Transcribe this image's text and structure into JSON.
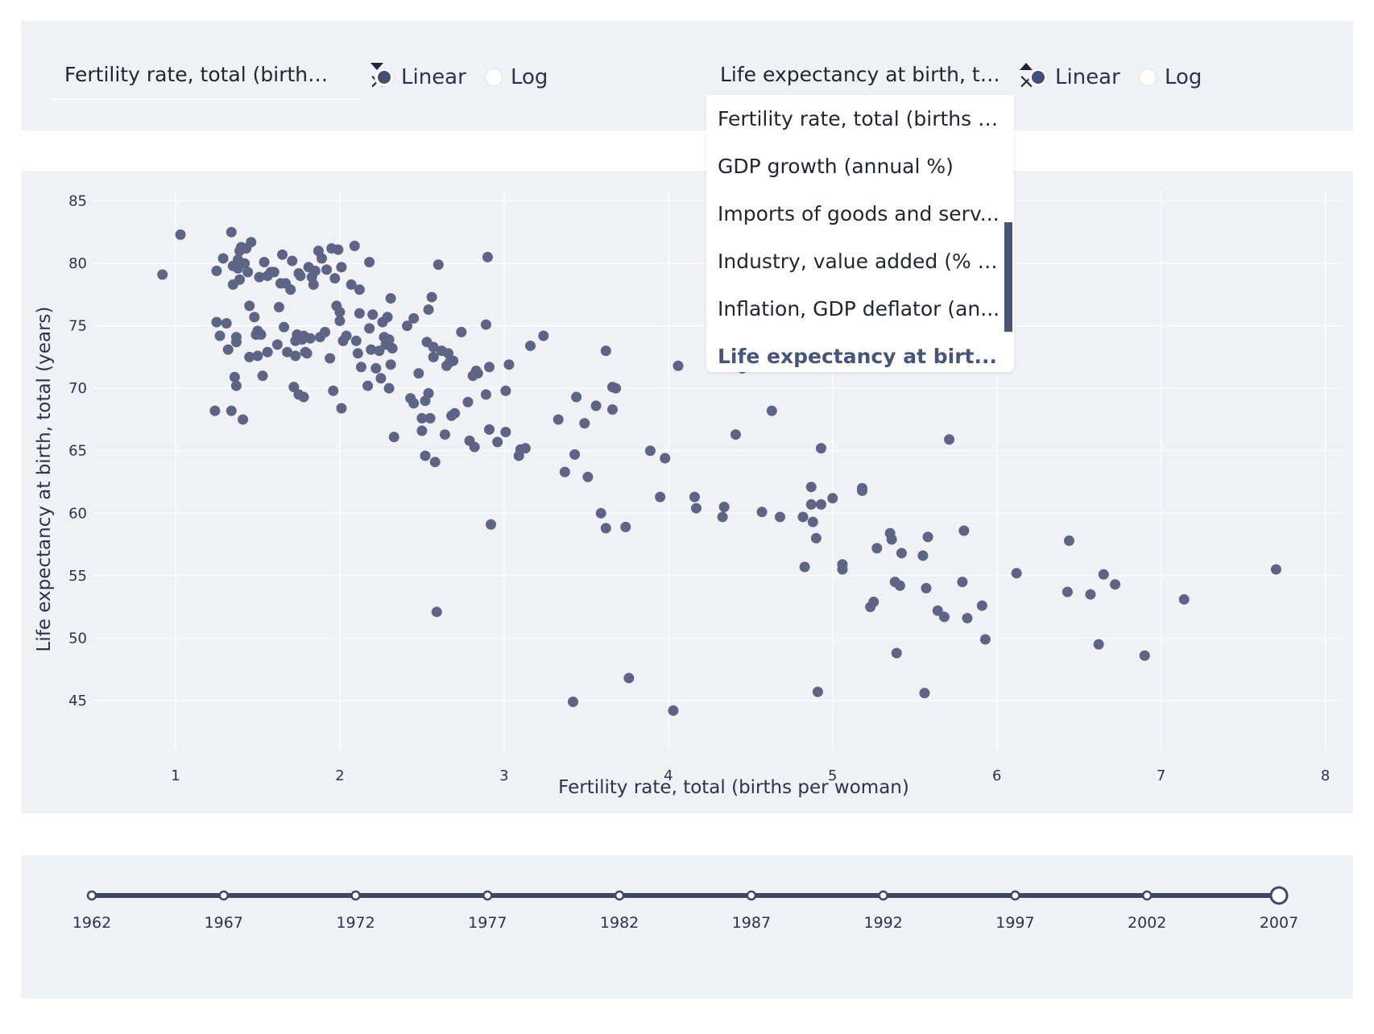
{
  "controls": {
    "x_dropdown": {
      "value": "Fertility rate, total (births p...",
      "clear": "×"
    },
    "x_scale": {
      "linear": "Linear",
      "log": "Log",
      "selected": "Linear"
    },
    "y_dropdown": {
      "value": "Life expectancy at birth, tot...",
      "clear": "×"
    },
    "y_scale": {
      "linear": "Linear",
      "log": "Log",
      "selected": "Linear"
    },
    "y_menu_options": [
      {
        "label": "Fertility rate, total (births p...",
        "selected": false
      },
      {
        "label": "GDP growth (annual %)",
        "selected": false
      },
      {
        "label": "Imports of goods and serv...",
        "selected": false
      },
      {
        "label": "Industry, value added (% o...",
        "selected": false
      },
      {
        "label": "Inflation, GDP deflator (an...",
        "selected": false
      },
      {
        "label": "Life expectancy at birt...",
        "selected": true
      }
    ]
  },
  "colors": {
    "marker": "#5d6485",
    "accent": "#48557a",
    "panel": "#f0f1f4",
    "grid": "#ffffff"
  },
  "chart_data": {
    "type": "scatter",
    "xlabel": "Fertility rate, total (births per woman)",
    "ylabel": "Life expectancy at birth, total (years)",
    "xlim": [
      0.5,
      8.1
    ],
    "ylim": [
      41,
      86
    ],
    "x_ticks": [
      1,
      2,
      3,
      4,
      5,
      6,
      7,
      8
    ],
    "y_ticks": [
      45,
      50,
      55,
      60,
      65,
      70,
      75,
      80,
      85
    ],
    "grid": true,
    "points": [
      [
        0.92,
        79.1
      ],
      [
        1.03,
        82.3
      ],
      [
        1.24,
        68.2
      ],
      [
        1.25,
        75.3
      ],
      [
        1.25,
        79.4
      ],
      [
        1.27,
        74.2
      ],
      [
        1.29,
        80.4
      ],
      [
        1.31,
        75.2
      ],
      [
        1.32,
        73.1
      ],
      [
        1.34,
        82.5
      ],
      [
        1.34,
        68.2
      ],
      [
        1.35,
        78.3
      ],
      [
        1.35,
        79.8
      ],
      [
        1.36,
        70.9
      ],
      [
        1.37,
        70.2
      ],
      [
        1.37,
        74.1
      ],
      [
        1.37,
        73.7
      ],
      [
        1.38,
        79.6
      ],
      [
        1.38,
        80.3
      ],
      [
        1.39,
        78.7
      ],
      [
        1.39,
        81.0
      ],
      [
        1.4,
        81.3
      ],
      [
        1.41,
        67.5
      ],
      [
        1.42,
        80.0
      ],
      [
        1.43,
        81.2
      ],
      [
        1.44,
        79.3
      ],
      [
        1.45,
        72.5
      ],
      [
        1.45,
        76.6
      ],
      [
        1.46,
        81.7
      ],
      [
        1.48,
        75.7
      ],
      [
        1.49,
        74.3
      ],
      [
        1.5,
        72.6
      ],
      [
        1.5,
        74.6
      ],
      [
        1.51,
        78.9
      ],
      [
        1.52,
        74.3
      ],
      [
        1.53,
        71.0
      ],
      [
        1.54,
        80.1
      ],
      [
        1.56,
        72.9
      ],
      [
        1.56,
        79.0
      ],
      [
        1.58,
        79.3
      ],
      [
        1.6,
        79.3
      ],
      [
        1.62,
        73.5
      ],
      [
        1.63,
        76.5
      ],
      [
        1.64,
        78.4
      ],
      [
        1.65,
        80.7
      ],
      [
        1.66,
        74.9
      ],
      [
        1.67,
        78.4
      ],
      [
        1.68,
        72.9
      ],
      [
        1.7,
        77.9
      ],
      [
        1.71,
        80.2
      ],
      [
        1.72,
        70.1
      ],
      [
        1.73,
        73.8
      ],
      [
        1.73,
        72.6
      ],
      [
        1.74,
        74.3
      ],
      [
        1.75,
        69.5
      ],
      [
        1.75,
        79.2
      ],
      [
        1.76,
        79.0
      ],
      [
        1.77,
        73.9
      ],
      [
        1.78,
        74.2
      ],
      [
        1.78,
        69.3
      ],
      [
        1.79,
        72.9
      ],
      [
        1.8,
        72.8
      ],
      [
        1.81,
        79.7
      ],
      [
        1.82,
        74.0
      ],
      [
        1.83,
        78.9
      ],
      [
        1.84,
        78.3
      ],
      [
        1.85,
        79.4
      ],
      [
        1.87,
        81.0
      ],
      [
        1.88,
        74.1
      ],
      [
        1.89,
        80.4
      ],
      [
        1.91,
        74.5
      ],
      [
        1.92,
        79.5
      ],
      [
        1.94,
        72.4
      ],
      [
        1.95,
        81.2
      ],
      [
        1.96,
        69.8
      ],
      [
        1.97,
        78.8
      ],
      [
        1.98,
        76.6
      ],
      [
        1.99,
        81.1
      ],
      [
        2.0,
        75.4
      ],
      [
        2.0,
        76.1
      ],
      [
        2.01,
        68.4
      ],
      [
        2.01,
        79.7
      ],
      [
        2.02,
        73.8
      ],
      [
        2.04,
        74.2
      ],
      [
        2.07,
        78.3
      ],
      [
        2.09,
        81.4
      ],
      [
        2.1,
        73.8
      ],
      [
        2.11,
        72.8
      ],
      [
        2.12,
        76.0
      ],
      [
        2.12,
        77.9
      ],
      [
        2.13,
        71.7
      ],
      [
        2.17,
        70.2
      ],
      [
        2.18,
        80.1
      ],
      [
        2.18,
        74.8
      ],
      [
        2.19,
        73.1
      ],
      [
        2.2,
        75.9
      ],
      [
        2.22,
        71.6
      ],
      [
        2.24,
        73.0
      ],
      [
        2.25,
        70.8
      ],
      [
        2.26,
        75.3
      ],
      [
        2.27,
        74.1
      ],
      [
        2.28,
        73.5
      ],
      [
        2.29,
        75.7
      ],
      [
        2.3,
        73.9
      ],
      [
        2.3,
        70.0
      ],
      [
        2.31,
        71.9
      ],
      [
        2.31,
        77.2
      ],
      [
        2.32,
        73.2
      ],
      [
        2.33,
        66.1
      ],
      [
        2.41,
        75.0
      ],
      [
        2.43,
        69.2
      ],
      [
        2.45,
        75.6
      ],
      [
        2.45,
        68.8
      ],
      [
        2.48,
        71.2
      ],
      [
        2.5,
        67.6
      ],
      [
        2.5,
        66.6
      ],
      [
        2.52,
        69.0
      ],
      [
        2.52,
        64.6
      ],
      [
        2.53,
        73.7
      ],
      [
        2.54,
        76.3
      ],
      [
        2.54,
        69.6
      ],
      [
        2.55,
        67.6
      ],
      [
        2.56,
        77.3
      ],
      [
        2.57,
        73.3
      ],
      [
        2.57,
        72.5
      ],
      [
        2.58,
        64.1
      ],
      [
        2.59,
        52.1
      ],
      [
        2.6,
        79.9
      ],
      [
        2.62,
        73.0
      ],
      [
        2.64,
        66.3
      ],
      [
        2.65,
        71.8
      ],
      [
        2.66,
        72.8
      ],
      [
        2.67,
        72.1
      ],
      [
        2.68,
        67.8
      ],
      [
        2.69,
        72.2
      ],
      [
        2.7,
        68.0
      ],
      [
        2.74,
        74.5
      ],
      [
        2.78,
        68.9
      ],
      [
        2.79,
        65.8
      ],
      [
        2.81,
        71.0
      ],
      [
        2.82,
        65.3
      ],
      [
        2.83,
        71.4
      ],
      [
        2.84,
        71.2
      ],
      [
        2.89,
        75.1
      ],
      [
        2.89,
        69.5
      ],
      [
        2.9,
        80.5
      ],
      [
        2.91,
        66.7
      ],
      [
        2.91,
        71.7
      ],
      [
        2.92,
        59.1
      ],
      [
        2.96,
        65.7
      ],
      [
        3.01,
        69.8
      ],
      [
        3.01,
        66.5
      ],
      [
        3.03,
        71.9
      ],
      [
        3.09,
        64.6
      ],
      [
        3.1,
        65.1
      ],
      [
        3.13,
        65.2
      ],
      [
        3.16,
        73.4
      ],
      [
        3.24,
        74.2
      ],
      [
        3.33,
        67.5
      ],
      [
        3.37,
        63.3
      ],
      [
        3.42,
        44.9
      ],
      [
        3.43,
        64.7
      ],
      [
        3.44,
        69.3
      ],
      [
        3.49,
        67.2
      ],
      [
        3.51,
        62.9
      ],
      [
        3.56,
        68.6
      ],
      [
        3.59,
        60.0
      ],
      [
        3.62,
        73.0
      ],
      [
        3.62,
        58.8
      ],
      [
        3.66,
        70.1
      ],
      [
        3.66,
        68.3
      ],
      [
        3.68,
        70.0
      ],
      [
        3.74,
        58.9
      ],
      [
        3.76,
        46.8
      ],
      [
        3.89,
        65.0
      ],
      [
        3.95,
        61.3
      ],
      [
        3.98,
        64.4
      ],
      [
        4.03,
        44.2
      ],
      [
        4.06,
        71.8
      ],
      [
        4.16,
        61.3
      ],
      [
        4.17,
        60.4
      ],
      [
        4.33,
        59.7
      ],
      [
        4.34,
        60.5
      ],
      [
        4.41,
        66.3
      ],
      [
        4.45,
        71.6
      ],
      [
        4.57,
        60.1
      ],
      [
        4.63,
        68.2
      ],
      [
        4.68,
        59.7
      ],
      [
        4.82,
        59.7
      ],
      [
        4.83,
        55.7
      ],
      [
        4.87,
        62.1
      ],
      [
        4.87,
        60.7
      ],
      [
        4.88,
        59.3
      ],
      [
        4.9,
        58.0
      ],
      [
        4.91,
        45.7
      ],
      [
        4.93,
        60.7
      ],
      [
        4.93,
        65.2
      ],
      [
        5.0,
        61.2
      ],
      [
        5.06,
        55.9
      ],
      [
        5.06,
        55.5
      ],
      [
        5.18,
        62.0
      ],
      [
        5.18,
        61.8
      ],
      [
        5.23,
        52.5
      ],
      [
        5.25,
        52.9
      ],
      [
        5.27,
        57.2
      ],
      [
        5.35,
        58.4
      ],
      [
        5.36,
        57.9
      ],
      [
        5.38,
        54.5
      ],
      [
        5.39,
        48.8
      ],
      [
        5.41,
        54.2
      ],
      [
        5.42,
        56.8
      ],
      [
        5.55,
        56.6
      ],
      [
        5.56,
        45.6
      ],
      [
        5.57,
        54.0
      ],
      [
        5.58,
        58.1
      ],
      [
        5.64,
        52.2
      ],
      [
        5.68,
        51.7
      ],
      [
        5.71,
        65.9
      ],
      [
        5.79,
        54.5
      ],
      [
        5.8,
        58.6
      ],
      [
        5.82,
        51.6
      ],
      [
        5.91,
        52.6
      ],
      [
        5.93,
        49.9
      ],
      [
        6.12,
        55.2
      ],
      [
        6.43,
        53.7
      ],
      [
        6.44,
        57.8
      ],
      [
        6.57,
        53.5
      ],
      [
        6.62,
        49.5
      ],
      [
        6.65,
        55.1
      ],
      [
        6.72,
        54.3
      ],
      [
        6.9,
        48.6
      ],
      [
        7.14,
        53.1
      ],
      [
        7.7,
        55.5
      ]
    ]
  },
  "slider": {
    "marks": [
      "1962",
      "1967",
      "1972",
      "1977",
      "1982",
      "1987",
      "1992",
      "1997",
      "2002",
      "2007"
    ],
    "selected": "2007"
  }
}
